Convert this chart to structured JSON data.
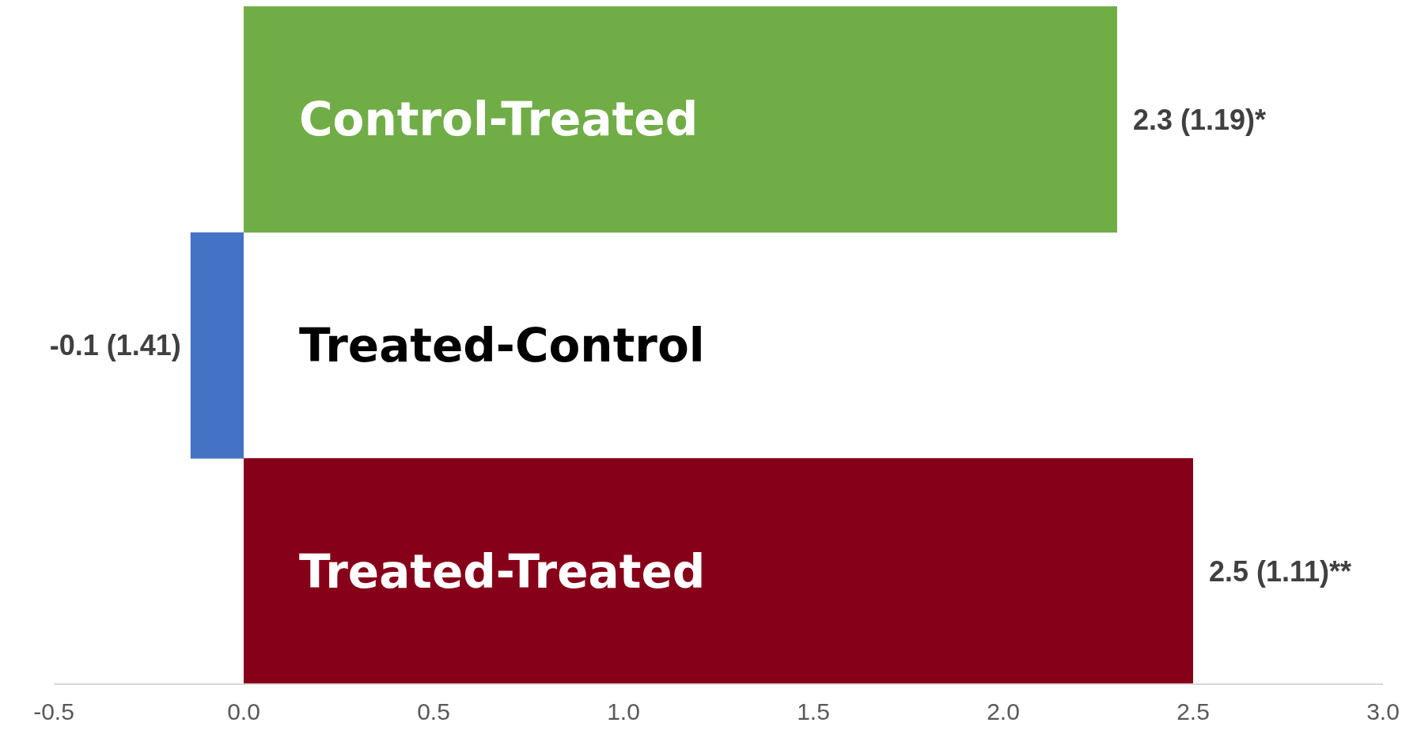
{
  "chart_data": {
    "type": "bar",
    "orientation": "horizontal",
    "categories": [
      "Control-Treated",
      "Treated-Control",
      "Treated-Treated"
    ],
    "values": [
      2.3,
      -0.14,
      2.5
    ],
    "colors": [
      "#70ad47",
      "#4472c4",
      "#870019"
    ],
    "value_labels": [
      "2.3 (1.19)*",
      "-0.1 (1.41)",
      "2.5 (1.11)**"
    ],
    "xlim": [
      -0.5,
      3.0
    ],
    "xticks": [
      -0.5,
      {
        "value": 0,
        "label": "0.0"
      },
      0.5,
      {
        "value": 1,
        "label": "1.0"
      },
      1.5,
      {
        "value": 2,
        "label": "2.0"
      },
      2.5,
      {
        "value": 3,
        "label": "3.0"
      }
    ],
    "grid": false,
    "legend": false
  }
}
